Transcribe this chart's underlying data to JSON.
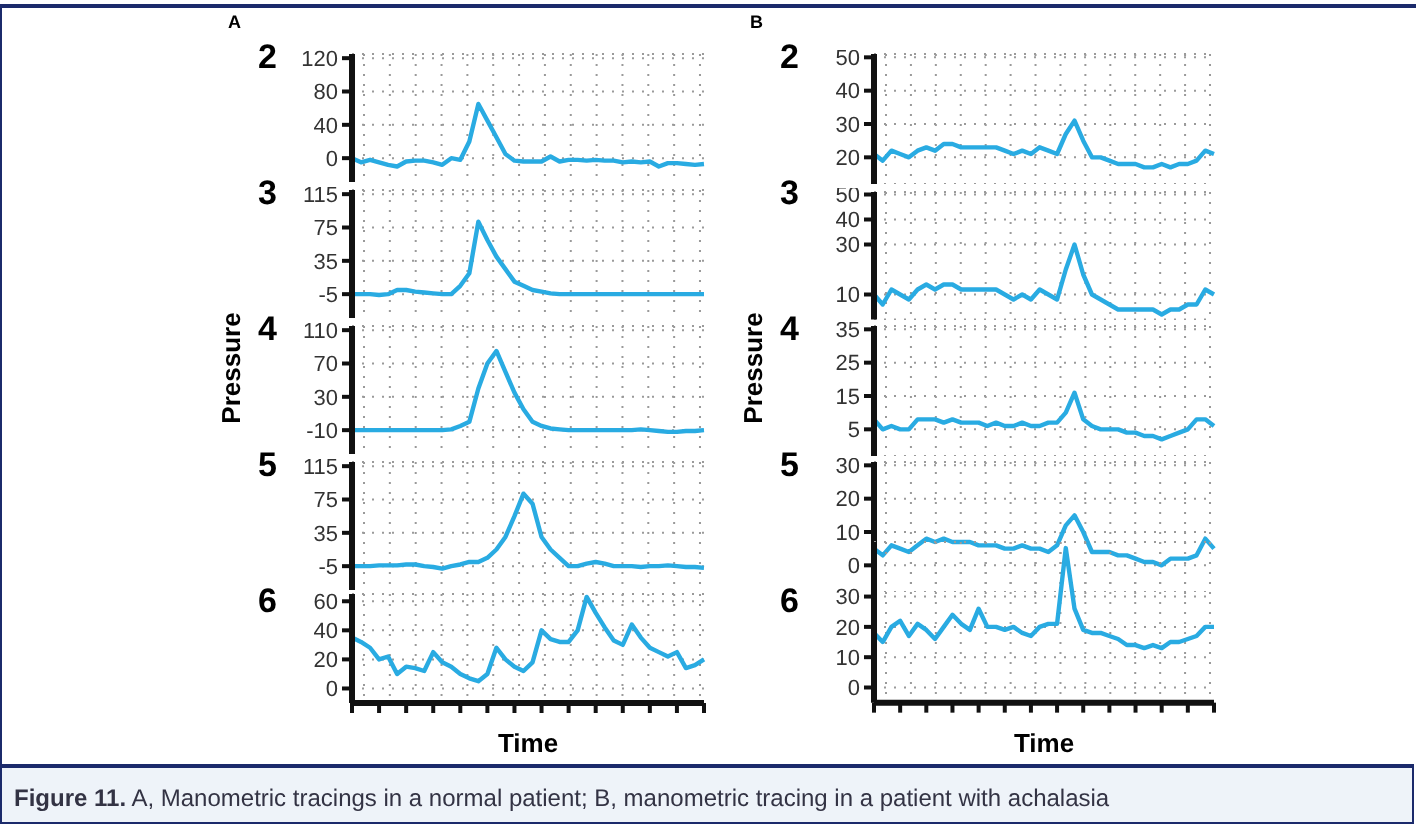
{
  "chart_data": [
    {
      "type": "line",
      "title": "A",
      "subtitle": "2",
      "annotations": [
        "Figure 11.",
        "A, Manometric tracings in a normal patient; B, manometric tracing in a patient with achalasia"
      ],
      "categories": [
        null,
        null,
        null,
        null,
        null,
        null,
        null,
        null,
        null,
        null,
        null,
        null,
        null,
        null,
        null,
        null,
        null,
        null,
        null,
        null,
        null,
        null,
        null,
        null,
        null,
        null,
        null,
        null,
        null,
        null,
        null,
        null,
        null,
        null,
        null,
        null,
        null,
        null,
        null,
        null
      ],
      "color": "#29abe2",
      "values": [
        0,
        -5,
        -2,
        -5,
        -8,
        -10,
        -4,
        -3,
        -3,
        -5,
        -8,
        0,
        -2,
        20,
        65,
        45,
        25,
        5,
        -3,
        -4,
        -4,
        -4,
        2,
        -4,
        -2,
        -2,
        -3,
        -2,
        -3,
        -3,
        -5,
        -4,
        -5,
        -4,
        -10,
        -6,
        -6,
        -7,
        -8,
        -7
      ],
      "ylim": [
        -30,
        125
      ],
      "yticks": [
        0,
        40,
        80,
        120
      ],
      "grid": true,
      "tick_labels": "y"
    },
    {
      "type": "line",
      "subtitle": "3",
      "categories": [
        null,
        null,
        null,
        null,
        null,
        null,
        null,
        null,
        null,
        null,
        null,
        null,
        null,
        null,
        null,
        null,
        null,
        null,
        null,
        null,
        null,
        null,
        null,
        null,
        null,
        null,
        null,
        null,
        null,
        null,
        null,
        null,
        null,
        null,
        null,
        null,
        null,
        null,
        null,
        null
      ],
      "color": "#29abe2",
      "values": [
        -5,
        -5,
        -5,
        -6,
        -5,
        0,
        0,
        -2,
        -3,
        -4,
        -5,
        -5,
        5,
        20,
        82,
        60,
        40,
        25,
        10,
        5,
        0,
        -2,
        -4,
        -5,
        -5,
        -5,
        -5,
        -5,
        -5,
        -5,
        -5,
        -5,
        -5,
        -5,
        -5,
        -5,
        -5,
        -5,
        -5,
        -5
      ],
      "ylim": [
        -35,
        120
      ],
      "yticks": [
        -5,
        35,
        75,
        115
      ],
      "grid": true,
      "tick_labels": "y"
    },
    {
      "type": "line",
      "subtitle": "4",
      "ylabel": "Pressure",
      "categories": [
        null,
        null,
        null,
        null,
        null,
        null,
        null,
        null,
        null,
        null,
        null,
        null,
        null,
        null,
        null,
        null,
        null,
        null,
        null,
        null,
        null,
        null,
        null,
        null,
        null,
        null,
        null,
        null,
        null,
        null,
        null,
        null,
        null,
        null,
        null,
        null,
        null,
        null,
        null,
        null
      ],
      "color": "#29abe2",
      "values": [
        -10,
        -10,
        -10,
        -10,
        -10,
        -10,
        -10,
        -10,
        -10,
        -10,
        -10,
        -9,
        -5,
        0,
        40,
        70,
        85,
        60,
        35,
        15,
        0,
        -5,
        -8,
        -9,
        -10,
        -10,
        -10,
        -10,
        -10,
        -10,
        -10,
        -10,
        -9,
        -10,
        -11,
        -12,
        -12,
        -11,
        -11,
        -10
      ],
      "ylim": [
        -40,
        115
      ],
      "yticks": [
        -10,
        30,
        70,
        110
      ],
      "grid": true,
      "tick_labels": "y"
    },
    {
      "type": "line",
      "subtitle": "5",
      "categories": [
        null,
        null,
        null,
        null,
        null,
        null,
        null,
        null,
        null,
        null,
        null,
        null,
        null,
        null,
        null,
        null,
        null,
        null,
        null,
        null,
        null,
        null,
        null,
        null,
        null,
        null,
        null,
        null,
        null,
        null,
        null,
        null,
        null,
        null,
        null,
        null,
        null,
        null,
        null,
        null
      ],
      "color": "#29abe2",
      "values": [
        -5,
        -5,
        -5,
        -4,
        -4,
        -4,
        -3,
        -3,
        -5,
        -6,
        -8,
        -5,
        -3,
        0,
        0,
        5,
        15,
        30,
        55,
        82,
        70,
        30,
        15,
        5,
        -5,
        -5,
        -2,
        0,
        -2,
        -5,
        -5,
        -5,
        -6,
        -5,
        -5,
        -4,
        -5,
        -6,
        -6,
        -7
      ],
      "ylim": [
        -35,
        120
      ],
      "yticks": [
        -5,
        35,
        75,
        115
      ],
      "grid": true,
      "tick_labels": "y"
    },
    {
      "type": "line",
      "subtitle": "6",
      "xlabel": "Time",
      "categories": [
        null,
        null,
        null,
        null,
        null,
        null,
        null,
        null,
        null,
        null,
        null,
        null,
        null,
        null,
        null,
        null,
        null,
        null,
        null,
        null,
        null,
        null,
        null,
        null,
        null,
        null,
        null,
        null,
        null,
        null,
        null,
        null,
        null,
        null,
        null,
        null,
        null,
        null,
        null,
        null
      ],
      "color": "#29abe2",
      "values": [
        35,
        32,
        28,
        20,
        22,
        10,
        15,
        14,
        12,
        25,
        18,
        15,
        10,
        7,
        5,
        10,
        28,
        20,
        15,
        12,
        18,
        40,
        34,
        32,
        32,
        40,
        63,
        52,
        42,
        33,
        30,
        44,
        35,
        28,
        25,
        22,
        25,
        14,
        16,
        20
      ],
      "ylim": [
        -10,
        65
      ],
      "yticks": [
        0,
        20,
        40,
        60
      ],
      "grid": true,
      "tick_labels": "y"
    },
    {
      "type": "line",
      "title": "B",
      "subtitle": "2",
      "categories": [
        null,
        null,
        null,
        null,
        null,
        null,
        null,
        null,
        null,
        null,
        null,
        null,
        null,
        null,
        null,
        null,
        null,
        null,
        null,
        null,
        null,
        null,
        null,
        null,
        null,
        null,
        null,
        null,
        null,
        null,
        null,
        null,
        null,
        null,
        null,
        null,
        null,
        null,
        null,
        null
      ],
      "color": "#29abe2",
      "values": [
        21,
        19,
        22,
        21,
        20,
        22,
        23,
        22,
        24,
        24,
        23,
        23,
        23,
        23,
        23,
        22,
        21,
        22,
        21,
        23,
        22,
        21,
        27,
        31,
        25,
        20,
        20,
        19,
        18,
        18,
        18,
        17,
        17,
        18,
        17,
        18,
        18,
        19,
        22,
        21
      ],
      "ylim": [
        12,
        51
      ],
      "yticks": [
        20,
        30,
        40,
        50
      ],
      "grid": true,
      "tick_labels": "y"
    },
    {
      "type": "line",
      "subtitle": "3",
      "categories": [
        null,
        null,
        null,
        null,
        null,
        null,
        null,
        null,
        null,
        null,
        null,
        null,
        null,
        null,
        null,
        null,
        null,
        null,
        null,
        null,
        null,
        null,
        null,
        null,
        null,
        null,
        null,
        null,
        null,
        null,
        null,
        null,
        null,
        null,
        null,
        null,
        null,
        null,
        null,
        null
      ],
      "color": "#29abe2",
      "values": [
        10,
        6,
        12,
        10,
        8,
        12,
        14,
        12,
        14,
        14,
        12,
        12,
        12,
        12,
        12,
        10,
        8,
        10,
        8,
        12,
        10,
        8,
        20,
        30,
        18,
        10,
        8,
        6,
        4,
        4,
        4,
        4,
        4,
        2,
        4,
        4,
        6,
        6,
        12,
        10
      ],
      "ylim": [
        0,
        51
      ],
      "yticks": [
        10,
        30,
        40,
        50
      ],
      "grid": true,
      "tick_labels": "y"
    },
    {
      "type": "line",
      "subtitle": "4",
      "ylabel": "Pressure",
      "categories": [
        null,
        null,
        null,
        null,
        null,
        null,
        null,
        null,
        null,
        null,
        null,
        null,
        null,
        null,
        null,
        null,
        null,
        null,
        null,
        null,
        null,
        null,
        null,
        null,
        null,
        null,
        null,
        null,
        null,
        null,
        null,
        null,
        null,
        null,
        null,
        null,
        null,
        null,
        null,
        null
      ],
      "color": "#29abe2",
      "values": [
        8,
        5,
        6,
        5,
        5,
        8,
        8,
        8,
        7,
        8,
        7,
        7,
        7,
        6,
        7,
        6,
        6,
        7,
        6,
        6,
        7,
        7,
        10,
        16,
        8,
        6,
        5,
        5,
        5,
        4,
        4,
        3,
        3,
        2,
        3,
        4,
        5,
        8,
        8,
        6
      ],
      "ylim": [
        -3,
        36
      ],
      "yticks": [
        5,
        15,
        25,
        35
      ],
      "grid": true,
      "tick_labels": "y"
    },
    {
      "type": "line",
      "subtitle": "5",
      "categories": [
        null,
        null,
        null,
        null,
        null,
        null,
        null,
        null,
        null,
        null,
        null,
        null,
        null,
        null,
        null,
        null,
        null,
        null,
        null,
        null,
        null,
        null,
        null,
        null,
        null,
        null,
        null,
        null,
        null,
        null,
        null,
        null,
        null,
        null,
        null,
        null,
        null,
        null,
        null,
        null
      ],
      "color": "#29abe2",
      "values": [
        5,
        3,
        6,
        5,
        4,
        6,
        8,
        7,
        8,
        7,
        7,
        7,
        6,
        6,
        6,
        5,
        5,
        6,
        5,
        5,
        4,
        6,
        12,
        15,
        10,
        4,
        4,
        4,
        3,
        3,
        2,
        1,
        1,
        0,
        2,
        2,
        2,
        3,
        8,
        5
      ],
      "ylim": [
        -8,
        31
      ],
      "yticks": [
        0,
        10,
        20,
        30
      ],
      "grid": true,
      "tick_labels": "y"
    },
    {
      "type": "line",
      "subtitle": "6",
      "xlabel": "Time",
      "categories": [
        null,
        null,
        null,
        null,
        null,
        null,
        null,
        null,
        null,
        null,
        null,
        null,
        null,
        null,
        null,
        null,
        null,
        null,
        null,
        null,
        null,
        null,
        null,
        null,
        null,
        null,
        null,
        null,
        null,
        null,
        null,
        null,
        null,
        null,
        null,
        null,
        null,
        null,
        null,
        null
      ],
      "color": "#29abe2",
      "values": [
        18,
        15,
        20,
        22,
        17,
        21,
        19,
        16,
        20,
        24,
        21,
        19,
        26,
        20,
        20,
        19,
        20,
        18,
        17,
        20,
        21,
        21,
        46,
        26,
        19,
        18,
        18,
        17,
        16,
        14,
        14,
        13,
        14,
        13,
        15,
        15,
        16,
        17,
        20,
        20
      ],
      "ylim": [
        -5,
        48
      ],
      "yticks": [
        0,
        10,
        20,
        30
      ],
      "grid": true,
      "tick_labels": "y"
    }
  ]
}
